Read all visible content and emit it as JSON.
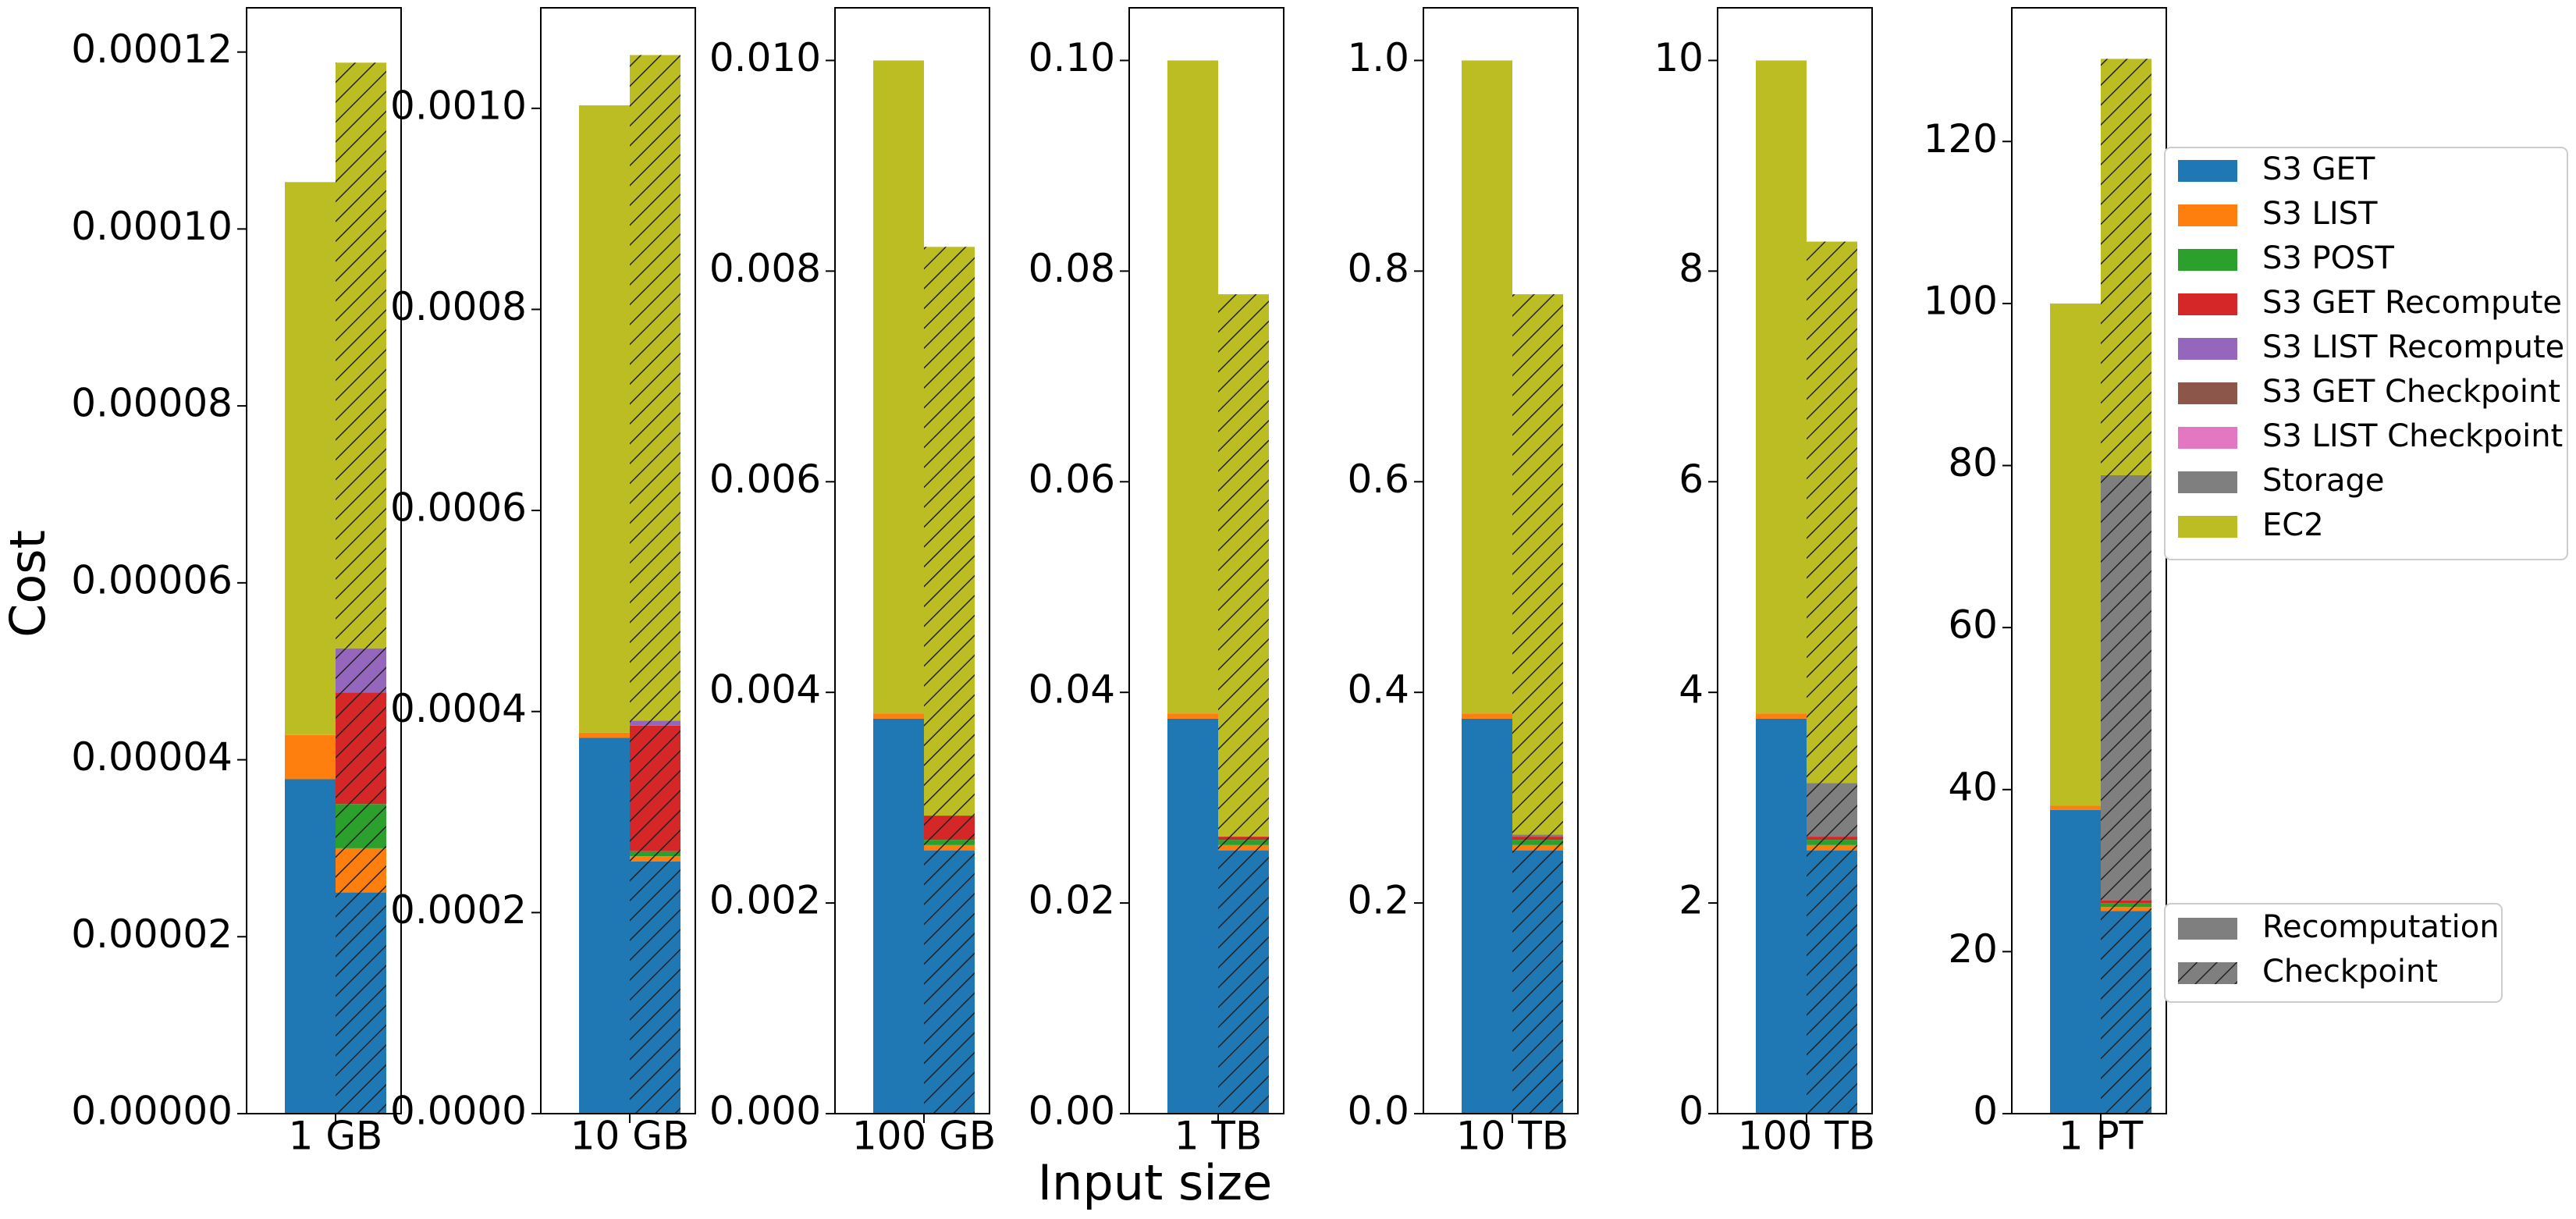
{
  "xlabel": "Input size",
  "ylabel": "Cost",
  "legend": {
    "components": [
      {
        "name": "S3 GET",
        "color": "#1f77b4"
      },
      {
        "name": "S3 LIST",
        "color": "#ff7f0e"
      },
      {
        "name": "S3 POST",
        "color": "#2ca02c"
      },
      {
        "name": "S3 GET Recompute",
        "color": "#d62728"
      },
      {
        "name": "S3 LIST Recompute",
        "color": "#9467bd"
      },
      {
        "name": "S3 GET Checkpoint",
        "color": "#8c564b"
      },
      {
        "name": "S3 LIST Checkpoint",
        "color": "#e377c2"
      },
      {
        "name": "Storage",
        "color": "#7f7f7f"
      },
      {
        "name": "EC2",
        "color": "#bcbd22"
      }
    ],
    "strategies": [
      {
        "name": "Recomputation",
        "color": "#7f7f7f"
      },
      {
        "name": "Checkpoint",
        "color": "#7f7f7f",
        "hatch": "///"
      }
    ]
  },
  "chart_data": [
    {
      "type": "stacked_bar",
      "category": "1 GB",
      "ylim": [
        0,
        0.000125
      ],
      "yticks": [
        {
          "value": 0,
          "label": "0.00000"
        },
        2e-05,
        4e-05,
        6e-05,
        8e-05,
        {
          "value": 0.0001,
          "label": "0.00010"
        },
        {
          "value": 0.00012,
          "label": "0.00012"
        }
      ],
      "recomputation": [
        3.78e-05,
        5e-06,
        0,
        0,
        0,
        0,
        0,
        0,
        6.25e-05
      ],
      "checkpoint": [
        2.5e-05,
        5e-06,
        5e-06,
        1.26e-05,
        5e-06,
        0,
        0,
        0,
        6.62e-05
      ]
    },
    {
      "type": "stacked_bar",
      "category": "10 GB",
      "ylim": [
        0,
        0.0011
      ],
      "yticks": [
        {
          "value": 0,
          "label": "0.0000"
        },
        0.0002,
        0.0004,
        0.0006,
        0.0008,
        {
          "value": 0.001,
          "label": "0.0010"
        }
      ],
      "recomputation": [
        0.000374,
        5e-06,
        0,
        0,
        0,
        0,
        0,
        0,
        0.000624
      ],
      "checkpoint": [
        0.000251,
        5e-06,
        5e-06,
        0.000125,
        5e-06,
        0,
        0,
        0,
        0.000662
      ]
    },
    {
      "type": "stacked_bar",
      "category": "100 GB",
      "ylim": [
        0,
        0.0105
      ],
      "yticks": [
        {
          "value": 0,
          "label": "0.000"
        },
        0.002,
        0.004,
        0.006,
        0.008,
        {
          "value": 0.01,
          "label": "0.010"
        }
      ],
      "recomputation": [
        0.00375,
        5e-05,
        0,
        0,
        0,
        0,
        0,
        0,
        0.0062
      ],
      "checkpoint": [
        0.0025,
        5e-05,
        5e-05,
        0.00023,
        0,
        0,
        0,
        0,
        0.0054
      ]
    },
    {
      "type": "stacked_bar",
      "category": "1 TB",
      "ylim": [
        0,
        0.105
      ],
      "yticks": [
        {
          "value": 0,
          "label": "0.00"
        },
        0.02,
        0.04,
        0.06,
        0.08,
        {
          "value": 0.1,
          "label": "0.10"
        }
      ],
      "recomputation": [
        0.0375,
        0.0005,
        0,
        0,
        0,
        0,
        0,
        0,
        0.062
      ],
      "checkpoint": [
        0.025,
        0.0005,
        0.0005,
        0.0003,
        0,
        0,
        0,
        0,
        0.0515
      ]
    },
    {
      "type": "stacked_bar",
      "category": "10 TB",
      "ylim": [
        0,
        1.05
      ],
      "yticks": [
        {
          "value": 0,
          "label": "0.0"
        },
        0.2,
        0.4,
        0.6,
        0.8,
        {
          "value": 1,
          "label": "1.0"
        }
      ],
      "recomputation": [
        0.375,
        0.005,
        0,
        0,
        0,
        0,
        0,
        0,
        0.62
      ],
      "checkpoint": [
        0.25,
        0.005,
        0.005,
        0.003,
        0,
        0,
        0,
        0.002,
        0.513
      ]
    },
    {
      "type": "stacked_bar",
      "category": "100 TB",
      "ylim": [
        0,
        10.5
      ],
      "yticks": [
        0,
        2,
        4,
        6,
        8,
        10
      ],
      "recomputation": [
        3.75,
        0.05,
        0,
        0,
        0,
        0,
        0,
        0,
        6.2
      ],
      "checkpoint": [
        2.5,
        0.05,
        0.05,
        0.03,
        0,
        0,
        0,
        0.51,
        5.14
      ]
    },
    {
      "type": "stacked_bar",
      "category": "1 PT",
      "ylim": [
        0,
        136.5
      ],
      "yticks": [
        0,
        20,
        40,
        60,
        80,
        100,
        120
      ],
      "recomputation": [
        37.5,
        0.5,
        0,
        0,
        0,
        0,
        0,
        0,
        62
      ],
      "checkpoint": [
        25,
        0.5,
        0.5,
        0.3,
        0,
        0,
        0,
        52.5,
        51.4
      ]
    }
  ]
}
